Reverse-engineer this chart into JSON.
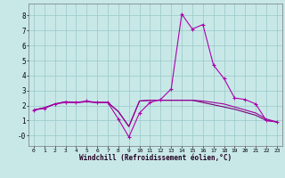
{
  "x": [
    0,
    1,
    2,
    3,
    4,
    5,
    6,
    7,
    8,
    9,
    10,
    11,
    12,
    13,
    14,
    15,
    16,
    17,
    18,
    19,
    20,
    21,
    22,
    23
  ],
  "line1": [
    1.7,
    1.8,
    2.1,
    2.2,
    2.2,
    2.3,
    2.2,
    2.2,
    1.1,
    -0.1,
    1.5,
    2.2,
    2.4,
    3.1,
    8.1,
    7.1,
    7.4,
    4.7,
    3.8,
    2.5,
    2.4,
    2.1,
    1.0,
    0.9
  ],
  "line2": [
    1.7,
    1.85,
    2.1,
    2.25,
    2.2,
    2.25,
    2.2,
    2.2,
    1.6,
    0.6,
    2.3,
    2.35,
    2.35,
    2.35,
    2.35,
    2.35,
    2.3,
    2.2,
    2.1,
    1.9,
    1.7,
    1.5,
    1.1,
    0.9
  ],
  "line3": [
    1.7,
    1.85,
    2.1,
    2.25,
    2.2,
    2.25,
    2.2,
    2.2,
    1.6,
    0.6,
    2.3,
    2.35,
    2.35,
    2.35,
    2.35,
    2.35,
    2.2,
    2.05,
    1.9,
    1.75,
    1.55,
    1.35,
    1.0,
    0.9
  ],
  "line_color1": "#aa00aa",
  "line_color2": "#990099",
  "line_color3": "#770077",
  "bg_color": "#c8e8e8",
  "grid_color": "#a0cccc",
  "xlabel": "Windchill (Refroidissement éolien,°C)",
  "ylim": [
    -0.7,
    8.8
  ],
  "xlim": [
    -0.5,
    23.5
  ],
  "xticks": [
    0,
    1,
    2,
    3,
    4,
    5,
    6,
    7,
    8,
    9,
    10,
    11,
    12,
    13,
    14,
    15,
    16,
    17,
    18,
    19,
    20,
    21,
    22,
    23
  ],
  "yticks": [
    0,
    1,
    2,
    3,
    4,
    5,
    6,
    7,
    8
  ],
  "ytick_labels": [
    "-0",
    "1",
    "2",
    "3",
    "4",
    "5",
    "6",
    "7",
    "8"
  ]
}
